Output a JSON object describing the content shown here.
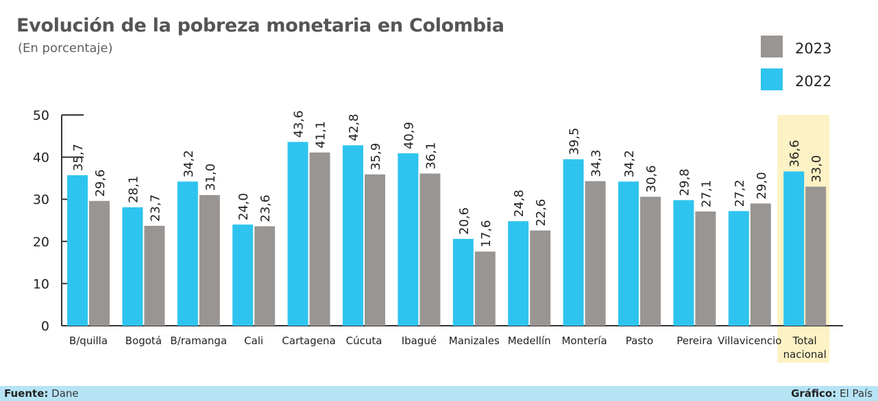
{
  "title": "Evolución de la pobreza monetaria en Colombia",
  "subtitle": "(En porcentaje)",
  "footer": {
    "source_label": "Fuente:",
    "source_value": "Dane",
    "graphic_label": "Gráfico:",
    "graphic_value": "El País"
  },
  "colors": {
    "series_2022": "#2ec4ef",
    "series_2023": "#999593",
    "highlight": "#fdf2c5",
    "axis": "#333333",
    "text": "#222222"
  },
  "chart_data": {
    "type": "bar",
    "title": "Evolución de la pobreza monetaria en Colombia",
    "subtitle": "(En porcentaje)",
    "xlabel": "",
    "ylabel": "",
    "ylim": [
      0,
      50
    ],
    "yticks": [
      "0",
      "10",
      "20",
      "30",
      "40",
      "50"
    ],
    "legend_position": "top-right",
    "categories": [
      "B/quilla",
      "Bogotá",
      "B/ramanga",
      "Cali",
      "Cartagena",
      "Cúcuta",
      "Ibagué",
      "Manizales",
      "Medellín",
      "Montería",
      "Pasto",
      "Pereira",
      "Villavicencio",
      [
        "Total",
        "nacional"
      ]
    ],
    "highlighted_category": 13,
    "series": [
      {
        "name": "2022",
        "values": [
          35.7,
          28.1,
          34.2,
          24.0,
          43.6,
          42.8,
          40.9,
          20.6,
          24.8,
          39.5,
          34.2,
          29.8,
          27.2,
          36.6
        ],
        "labels": [
          "35,7",
          "28,1",
          "34,2",
          "24,0",
          "43,6",
          "42,8",
          "40,9",
          "20,6",
          "24,8",
          "39,5",
          "34,2",
          "29,8",
          "27,2",
          "36,6"
        ]
      },
      {
        "name": "2023",
        "values": [
          29.6,
          23.7,
          31.0,
          23.6,
          41.1,
          35.9,
          36.1,
          17.6,
          22.6,
          34.3,
          30.6,
          27.1,
          29.0,
          33.0
        ],
        "labels": [
          "29,6",
          "23,7",
          "31,0",
          "23,6",
          "41,1",
          "35,9",
          "36,1",
          "17,6",
          "22,6",
          "34,3",
          "30,6",
          "27,1",
          "29,0",
          "33,0"
        ]
      }
    ],
    "legend": [
      "2023",
      "2022"
    ]
  }
}
